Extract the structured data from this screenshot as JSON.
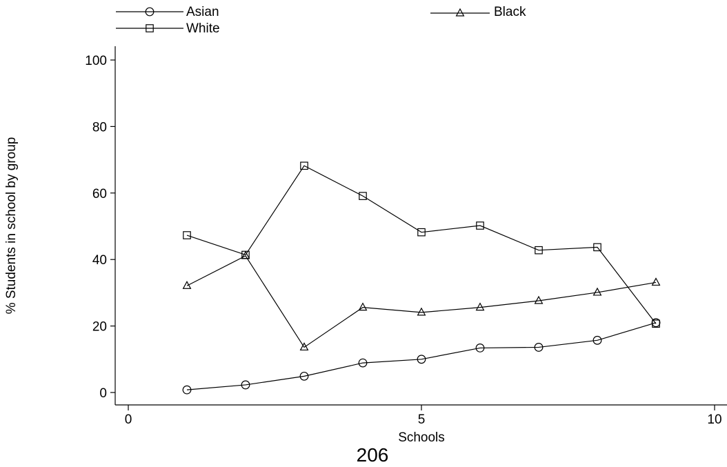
{
  "chart_data": {
    "type": "line",
    "xlabel": "Schools",
    "ylabel": "% Students in school by group",
    "xlim": [
      0,
      10
    ],
    "ylim": [
      0,
      100
    ],
    "xticks": [
      0,
      5,
      10
    ],
    "yticks": [
      0,
      20,
      40,
      60,
      80,
      100
    ],
    "grid": false,
    "legend_position": "top",
    "series": [
      {
        "name": "Asian",
        "marker": "circle",
        "x": [
          1,
          2,
          3,
          4,
          5,
          6,
          7,
          8,
          9
        ],
        "y": [
          0.8,
          2.3,
          4.9,
          8.9,
          10.0,
          13.4,
          13.6,
          15.7,
          21.0
        ]
      },
      {
        "name": "Black",
        "marker": "triangle",
        "x": [
          1,
          2,
          3,
          4,
          5,
          6,
          7,
          8,
          9
        ],
        "y": [
          32.1,
          41.1,
          13.6,
          25.6,
          24.1,
          25.6,
          27.6,
          30.1,
          33.1
        ]
      },
      {
        "name": "White",
        "marker": "square",
        "x": [
          1,
          2,
          3,
          4,
          5,
          6,
          7,
          8,
          9
        ],
        "y": [
          47.3,
          41.4,
          68.2,
          59.1,
          48.2,
          50.2,
          42.8,
          43.7,
          20.7
        ]
      }
    ]
  },
  "footer_note": "206"
}
